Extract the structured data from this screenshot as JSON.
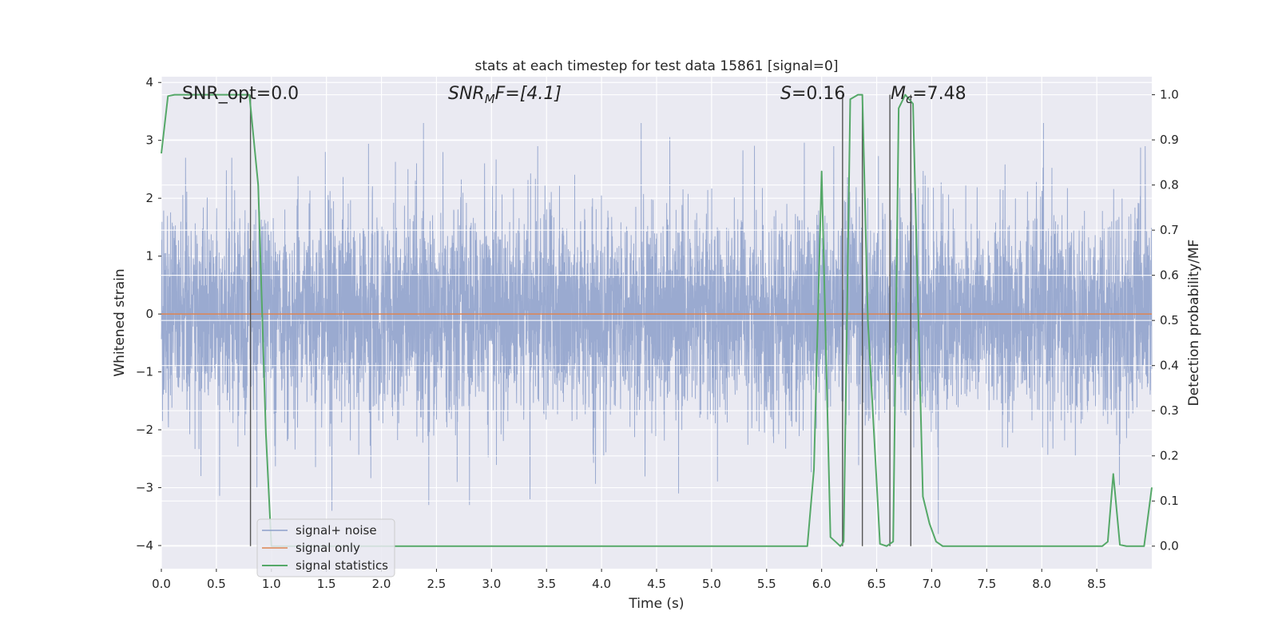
{
  "chart_data": {
    "type": "line",
    "title": "stats at each timestep for test data 15861 [signal=0]",
    "xlabel": "Time (s)",
    "ylabel": "Whitened strain",
    "y2label": "Detection probability/MF",
    "xlim": [
      0.0,
      9.0
    ],
    "ylim": [
      -4.4,
      4.1
    ],
    "y2lim": [
      -0.05,
      1.04
    ],
    "xticks": [
      "0.0",
      "0.5",
      "1.0",
      "1.5",
      "2.0",
      "2.5",
      "3.0",
      "3.5",
      "4.0",
      "4.5",
      "5.0",
      "5.5",
      "6.0",
      "6.5",
      "7.0",
      "7.5",
      "8.0",
      "8.5"
    ],
    "yticks": [
      "4",
      "3",
      "2",
      "1",
      "0",
      "−1",
      "−2",
      "−3",
      "−4"
    ],
    "y2ticks": [
      "1.0",
      "0.9",
      "0.8",
      "0.7",
      "0.6",
      "0.5",
      "0.4",
      "0.3",
      "0.2",
      "0.1",
      "0.0"
    ],
    "grid": true,
    "legend_position": "lower-left",
    "annotations": {
      "snr_opt": "SNR_opt=0.0",
      "snr_mf_main": "SNR",
      "snr_mf_sub": "M",
      "snr_mf_rest": "F=[4.1]",
      "s_main": "S",
      "s_rest": "=0.16",
      "mc_main": "M",
      "mc_sub": "c",
      "mc_rest": "=7.48"
    },
    "vertical_lines_x": [
      0.81,
      6.19,
      6.37,
      6.62,
      6.81
    ],
    "series": [
      {
        "name": "signal+ noise",
        "color": "#8c9fca",
        "envelope": {
          "typical_amplitude": 2.0,
          "peak_max": 3.3,
          "peak_min": -3.8
        },
        "notable_peaks": [
          {
            "x": 0.22,
            "y": 2.7
          },
          {
            "x": 0.36,
            "y": -2.8
          },
          {
            "x": 0.64,
            "y": 2.7
          },
          {
            "x": 1.55,
            "y": -3.4
          },
          {
            "x": 1.49,
            "y": 2.8
          },
          {
            "x": 2.43,
            "y": -3.3
          },
          {
            "x": 2.8,
            "y": -3.3
          },
          {
            "x": 3.35,
            "y": -3.2
          },
          {
            "x": 3.42,
            "y": 2.9
          },
          {
            "x": 4.36,
            "y": 3.3
          },
          {
            "x": 4.7,
            "y": -3.1
          },
          {
            "x": 6.11,
            "y": 2.9
          },
          {
            "x": 7.06,
            "y": -3.8
          },
          {
            "x": 8.94,
            "y": 2.9
          }
        ]
      },
      {
        "name": "signal only",
        "color": "#dd8452",
        "x": [
          0.0,
          9.0
        ],
        "y": [
          0.0,
          0.0
        ]
      },
      {
        "name": "signal statistics",
        "color": "#55a868",
        "axis": "right",
        "x": [
          0.0,
          0.06,
          0.12,
          0.5,
          0.8,
          0.88,
          0.95,
          1.0,
          5.0,
          5.87,
          5.93,
          6.0,
          6.08,
          6.17,
          6.2,
          6.26,
          6.33,
          6.37,
          6.42,
          6.53,
          6.59,
          6.65,
          6.7,
          6.76,
          6.83,
          6.92,
          6.98,
          7.04,
          7.1,
          7.2,
          8.55,
          8.6,
          8.65,
          8.71,
          8.77,
          8.83,
          8.93,
          9.0
        ],
        "y": [
          0.87,
          0.997,
          1.0,
          1.0,
          1.0,
          0.8,
          0.25,
          0.0,
          0.0,
          0.0,
          0.17,
          0.83,
          0.02,
          0.0,
          0.01,
          0.99,
          1.0,
          1.0,
          0.5,
          0.005,
          0.0,
          0.01,
          0.97,
          1.0,
          0.98,
          0.11,
          0.05,
          0.01,
          0.0,
          0.0,
          0.0,
          0.01,
          0.16,
          0.003,
          0.0,
          0.0,
          0.0,
          0.13
        ]
      }
    ]
  }
}
